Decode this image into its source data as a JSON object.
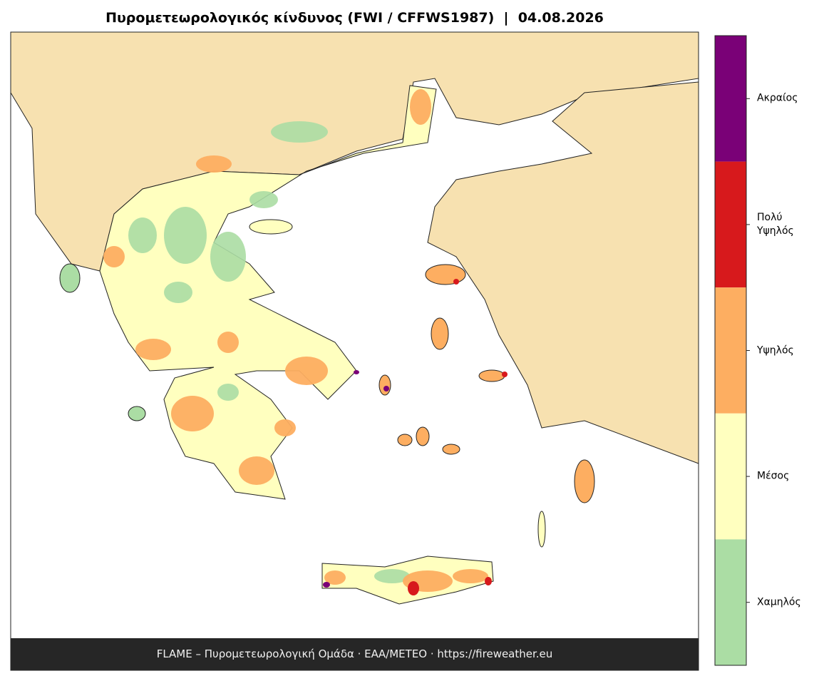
{
  "header": {
    "title": "Πυρομετεωρολογικός κίνδυνος (FWI / CFFWS1987)  |  04.08.2026"
  },
  "legend": {
    "items": [
      {
        "label": "Ακραίος",
        "color": "#7a0177"
      },
      {
        "label": "Πολύ\nΥψηλός",
        "color": "#d7191c"
      },
      {
        "label": "Υψηλός",
        "color": "#fdae61"
      },
      {
        "label": "Μέσος",
        "color": "#ffffbf"
      },
      {
        "label": "Χαμηλός",
        "color": "#abdda4"
      }
    ]
  },
  "footer": {
    "text": "FLAME – Πυρομετεωρολογική Ομάδα · ΕΑΑ/METEO · https://fireweather.eu"
  }
}
